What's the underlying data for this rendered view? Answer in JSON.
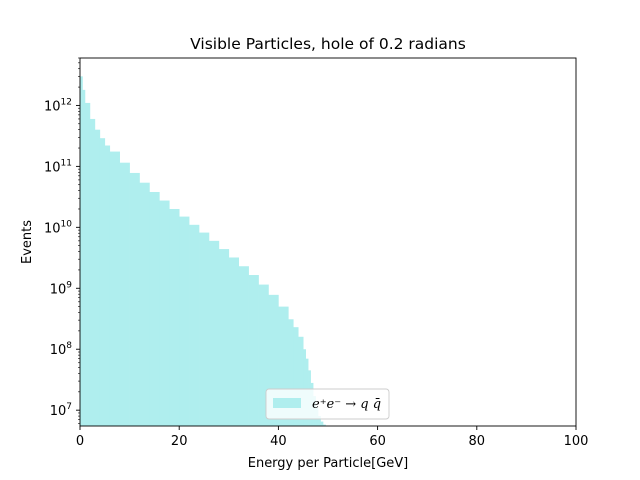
{
  "chart_data": {
    "type": "bar",
    "title": "Visible Particles, hole of 0.2 radians",
    "xlabel": "Energy per Particle[GeV]",
    "ylabel": "Events",
    "xlim": [
      0,
      100
    ],
    "ylim": [
      5500000.0,
      6000000000000.0
    ],
    "yscale": "log",
    "grid": false,
    "legend_loc": "lower center",
    "xticks": [
      0,
      20,
      40,
      60,
      80,
      100
    ],
    "yticks": [
      {
        "base": "10",
        "exp": "7",
        "value": 10000000.0
      },
      {
        "base": "10",
        "exp": "8",
        "value": 100000000.0
      },
      {
        "base": "10",
        "exp": "9",
        "value": 1000000000.0
      },
      {
        "base": "10",
        "exp": "10",
        "value": 10000000000.0
      },
      {
        "base": "10",
        "exp": "11",
        "value": 100000000000.0
      },
      {
        "base": "10",
        "exp": "12",
        "value": 1000000000000.0
      }
    ],
    "series": [
      {
        "name": "e⁺e⁻ → q q̄",
        "color": "#afeeee",
        "style": "histogram-stepfilled",
        "x": [
          0,
          0.5,
          1,
          2,
          3,
          4,
          5,
          6,
          8,
          10,
          12,
          14,
          16,
          18,
          20,
          22,
          24,
          26,
          28,
          30,
          32,
          34,
          36,
          38,
          40,
          42,
          43,
          44,
          45,
          45.5,
          46,
          46.5,
          47,
          47.5,
          48,
          48.5,
          49
        ],
        "values": [
          3000000000000.0,
          1800000000000.0,
          1100000000000.0,
          600000000000.0,
          400000000000.0,
          290000000000.0,
          220000000000.0,
          175000000000.0,
          115000000000.0,
          78000000000.0,
          54000000000.0,
          38000000000.0,
          27500000000.0,
          20000000000.0,
          15000000000.0,
          11000000000.0,
          8200000000.0,
          6000000000.0,
          4400000000.0,
          3200000000.0,
          2300000000.0,
          1650000000.0,
          1150000000.0,
          780000000.0,
          500000000.0,
          310000000.0,
          230000000.0,
          160000000.0,
          100000000.0,
          70000000.0,
          45000000.0,
          28000000.0,
          17000000.0,
          11000000.0,
          8000000.0,
          6500000.0,
          5800000.0
        ]
      }
    ]
  }
}
